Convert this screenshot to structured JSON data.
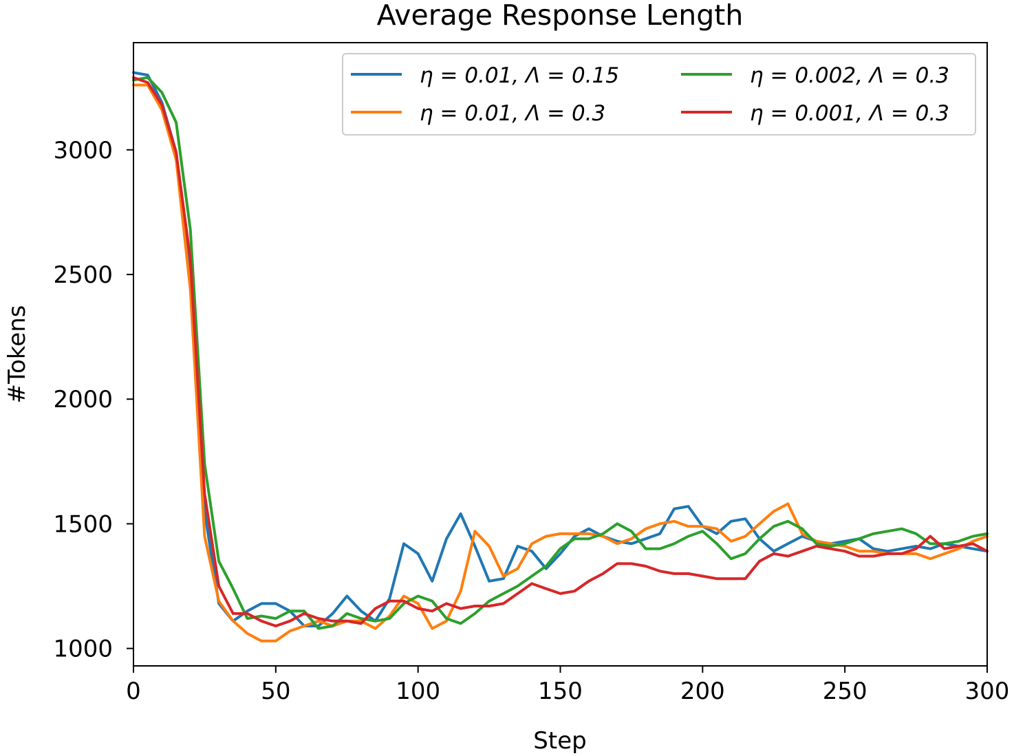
{
  "chart_data": {
    "type": "line",
    "title": "Average Response Length",
    "xlabel": "Step",
    "ylabel": "#Tokens",
    "xlim": [
      0,
      300
    ],
    "ylim": [
      930,
      3430
    ],
    "xticks": [
      0,
      50,
      100,
      150,
      200,
      250,
      300
    ],
    "yticks": [
      1000,
      1500,
      2000,
      2500,
      3000
    ],
    "grid": false,
    "legend_position": "top-right",
    "series": [
      {
        "name": "η = 0.01,  Λ = 0.15",
        "color": "#1f77b4",
        "x": [
          0,
          5,
          10,
          15,
          20,
          25,
          30,
          35,
          40,
          45,
          50,
          55,
          60,
          65,
          70,
          75,
          80,
          85,
          90,
          95,
          100,
          105,
          110,
          115,
          120,
          125,
          130,
          135,
          140,
          145,
          150,
          155,
          160,
          165,
          170,
          175,
          180,
          185,
          190,
          195,
          200,
          205,
          210,
          215,
          220,
          225,
          230,
          235,
          240,
          245,
          250,
          255,
          260,
          265,
          270,
          275,
          280,
          285,
          290,
          295,
          300
        ],
        "y": [
          3310,
          3300,
          3190,
          2990,
          2480,
          1550,
          1180,
          1110,
          1150,
          1180,
          1180,
          1150,
          1090,
          1090,
          1140,
          1210,
          1150,
          1110,
          1200,
          1420,
          1380,
          1270,
          1440,
          1540,
          1410,
          1270,
          1280,
          1410,
          1390,
          1320,
          1380,
          1450,
          1480,
          1450,
          1430,
          1420,
          1440,
          1460,
          1560,
          1570,
          1490,
          1460,
          1510,
          1520,
          1440,
          1390,
          1420,
          1450,
          1430,
          1420,
          1430,
          1440,
          1400,
          1390,
          1400,
          1410,
          1400,
          1420,
          1410,
          1400,
          1390
        ]
      },
      {
        "name": "η = 0.01,  Λ = 0.3",
        "color": "#ff7f0e",
        "x": [
          0,
          5,
          10,
          15,
          20,
          25,
          30,
          35,
          40,
          45,
          50,
          55,
          60,
          65,
          70,
          75,
          80,
          85,
          90,
          95,
          100,
          105,
          110,
          115,
          120,
          125,
          130,
          135,
          140,
          145,
          150,
          155,
          160,
          165,
          170,
          175,
          180,
          185,
          190,
          195,
          200,
          205,
          210,
          215,
          220,
          225,
          230,
          235,
          240,
          245,
          250,
          255,
          260,
          265,
          270,
          275,
          280,
          285,
          290,
          295,
          300
        ],
        "y": [
          3260,
          3260,
          3160,
          2960,
          2440,
          1450,
          1190,
          1110,
          1060,
          1030,
          1030,
          1070,
          1090,
          1110,
          1090,
          1110,
          1110,
          1080,
          1130,
          1210,
          1180,
          1080,
          1110,
          1230,
          1470,
          1410,
          1290,
          1320,
          1420,
          1450,
          1460,
          1460,
          1460,
          1450,
          1420,
          1440,
          1480,
          1500,
          1510,
          1490,
          1490,
          1480,
          1430,
          1450,
          1500,
          1550,
          1580,
          1460,
          1430,
          1420,
          1410,
          1390,
          1390,
          1380,
          1380,
          1380,
          1360,
          1380,
          1400,
          1430,
          1450
        ]
      },
      {
        "name": "η = 0.002,  Λ = 0.3",
        "color": "#2ca02c",
        "x": [
          0,
          5,
          10,
          15,
          20,
          25,
          30,
          35,
          40,
          45,
          50,
          55,
          60,
          65,
          70,
          75,
          80,
          85,
          90,
          95,
          100,
          105,
          110,
          115,
          120,
          125,
          130,
          135,
          140,
          145,
          150,
          155,
          160,
          165,
          170,
          175,
          180,
          185,
          190,
          195,
          200,
          205,
          210,
          215,
          220,
          225,
          230,
          235,
          240,
          245,
          250,
          255,
          260,
          265,
          270,
          275,
          280,
          285,
          290,
          295,
          300
        ],
        "y": [
          3280,
          3290,
          3230,
          3110,
          2680,
          1740,
          1350,
          1240,
          1120,
          1130,
          1120,
          1150,
          1150,
          1080,
          1090,
          1140,
          1120,
          1110,
          1120,
          1180,
          1210,
          1190,
          1120,
          1100,
          1140,
          1190,
          1220,
          1250,
          1290,
          1330,
          1400,
          1440,
          1440,
          1460,
          1500,
          1470,
          1400,
          1400,
          1420,
          1450,
          1470,
          1420,
          1360,
          1380,
          1440,
          1490,
          1510,
          1480,
          1420,
          1410,
          1420,
          1440,
          1460,
          1470,
          1480,
          1460,
          1420,
          1420,
          1430,
          1450,
          1460
        ]
      },
      {
        "name": "η = 0.001,  Λ = 0.3",
        "color": "#d62728",
        "x": [
          0,
          5,
          10,
          15,
          20,
          25,
          30,
          35,
          40,
          45,
          50,
          55,
          60,
          65,
          70,
          75,
          80,
          85,
          90,
          95,
          100,
          105,
          110,
          115,
          120,
          125,
          130,
          135,
          140,
          145,
          150,
          155,
          160,
          165,
          170,
          175,
          180,
          185,
          190,
          195,
          200,
          205,
          210,
          215,
          220,
          225,
          230,
          235,
          240,
          245,
          250,
          255,
          260,
          265,
          270,
          275,
          280,
          285,
          290,
          295,
          300
        ],
        "y": [
          3290,
          3270,
          3180,
          2990,
          2560,
          1620,
          1250,
          1140,
          1140,
          1110,
          1090,
          1110,
          1140,
          1120,
          1110,
          1110,
          1100,
          1160,
          1190,
          1190,
          1160,
          1150,
          1180,
          1160,
          1170,
          1170,
          1180,
          1220,
          1260,
          1240,
          1220,
          1230,
          1270,
          1300,
          1340,
          1340,
          1330,
          1310,
          1300,
          1300,
          1290,
          1280,
          1280,
          1280,
          1350,
          1380,
          1370,
          1390,
          1410,
          1400,
          1390,
          1370,
          1370,
          1380,
          1380,
          1400,
          1450,
          1400,
          1410,
          1420,
          1390
        ]
      }
    ]
  }
}
